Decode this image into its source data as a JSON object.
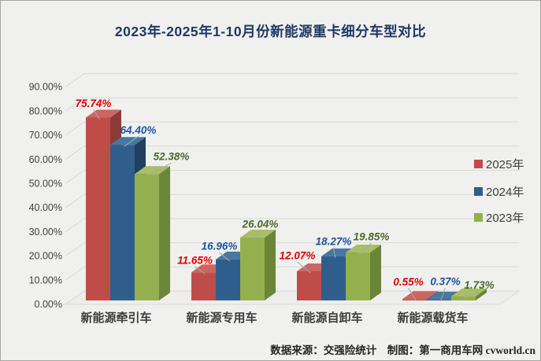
{
  "title": "2023年-2025年1-10月份新能源重卡细分车型对比",
  "footer": "数据来源：交强险统计　制图：第一商用车网 cvworld.cn",
  "colors": {
    "title_text": "#1f3864",
    "axis_text": "#404040",
    "category_text": "#3c3c3c",
    "gridline": "#d9d9d7",
    "leader_line": "#a8a8a8",
    "floor_fill": "#ededeb",
    "background": "#f0f0ee"
  },
  "legend": {
    "position": "right",
    "items": [
      {
        "label": "2025年",
        "color": "#be4d4a"
      },
      {
        "label": "2024年",
        "color": "#2f5e8c"
      },
      {
        "label": "2023年",
        "color": "#94b04e"
      }
    ]
  },
  "chart_data": {
    "type": "bar",
    "variant": "3d-clustered-column",
    "title": "2023年-2025年1-10月份新能源重卡细分车型对比",
    "categories": [
      "新能源牵引车",
      "新能源专用车",
      "新能源自卸车",
      "新能源载货车"
    ],
    "series": [
      {
        "name": "2025年",
        "values": [
          75.74,
          11.65,
          12.07,
          0.55
        ],
        "labels": [
          "75.74%",
          "11.65%",
          "12.07%",
          "0.55%"
        ],
        "bar_color": "#be4d4a",
        "bar_side_color": "#8e3b38",
        "bar_top_color": "#cb6663",
        "label_color": "#e60000"
      },
      {
        "name": "2024年",
        "values": [
          64.4,
          16.96,
          18.27,
          0.37
        ],
        "labels": [
          "64.40%",
          "16.96%",
          "18.27%",
          "0.37%"
        ],
        "bar_color": "#2f5e8c",
        "bar_side_color": "#1f4060",
        "bar_top_color": "#47789f",
        "label_color": "#1f54a3"
      },
      {
        "name": "2023年",
        "values": [
          52.38,
          26.04,
          19.85,
          1.73
        ],
        "labels": [
          "52.38%",
          "26.04%",
          "19.85%",
          "1.73%"
        ],
        "bar_color": "#94b04e",
        "bar_side_color": "#6a8636",
        "bar_top_color": "#a9be66",
        "label_color": "#4e682b"
      }
    ],
    "xlabel": "",
    "ylabel": "",
    "ylim": [
      0,
      90
    ],
    "ytick_step": 10,
    "yticks": [
      "0.00%",
      "10.00%",
      "20.00%",
      "30.00%",
      "40.00%",
      "50.00%",
      "60.00%",
      "70.00%",
      "80.00%",
      "90.00%"
    ],
    "grid": true,
    "legend_position": "right",
    "source_note": "数据来源：交强险统计　制图：第一商用车网 cvworld.cn"
  }
}
